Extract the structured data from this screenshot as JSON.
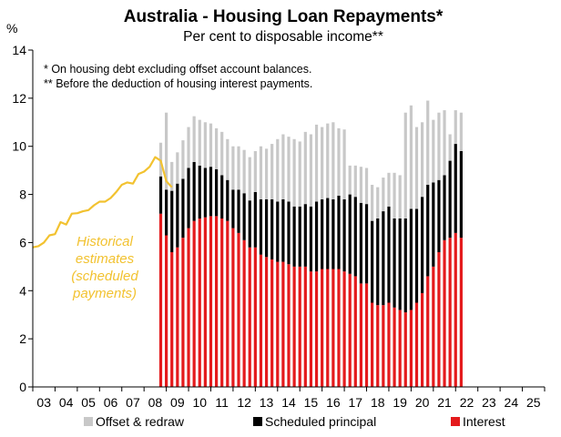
{
  "chart_data": {
    "type": "bar",
    "title": "Australia - Housing Loan Repayments*",
    "subtitle": "Per cent to disposable income**",
    "ylabel": "%",
    "notes": [
      "* On housing debt excluding offset account balances.",
      "** Before the deduction of housing interest payments."
    ],
    "ylim": [
      0,
      14
    ],
    "yticks": [
      0,
      2,
      4,
      6,
      8,
      10,
      12,
      14
    ],
    "xlim": [
      2003,
      2026
    ],
    "xtick_labels": [
      "03",
      "04",
      "05",
      "06",
      "07",
      "08",
      "09",
      "10",
      "11",
      "12",
      "13",
      "14",
      "15",
      "16",
      "17",
      "18",
      "19",
      "20",
      "21",
      "22",
      "23",
      "24",
      "25"
    ],
    "gridlines": false,
    "legend_position": "bottom",
    "annotation": [
      "Historical",
      "estimates",
      "(scheduled",
      "payments)"
    ],
    "colors": {
      "offset": "#C8C8C8",
      "scheduled": "#000000",
      "interest": "#E41A1C",
      "historical": "#F2C230"
    },
    "historical_line": {
      "name": "Historical estimates (scheduled payments)",
      "x": [
        2003.0,
        2003.25,
        2003.5,
        2003.75,
        2004.0,
        2004.25,
        2004.5,
        2004.75,
        2005.0,
        2005.25,
        2005.5,
        2005.75,
        2006.0,
        2006.25,
        2006.5,
        2006.75,
        2007.0,
        2007.25,
        2007.5,
        2007.75,
        2008.0,
        2008.25,
        2008.5,
        2008.75,
        2009.0,
        2009.25
      ],
      "y": [
        5.8,
        5.85,
        6.0,
        6.3,
        6.35,
        6.85,
        6.75,
        7.2,
        7.22,
        7.3,
        7.35,
        7.55,
        7.7,
        7.7,
        7.85,
        8.1,
        8.4,
        8.5,
        8.45,
        8.85,
        8.95,
        9.15,
        9.55,
        9.4,
        8.55,
        8.3
      ]
    },
    "bars": {
      "x_start": 2008.75,
      "step": 0.25,
      "series": [
        {
          "name": "Offset & redraw",
          "key": "offset",
          "values": [
            1.4,
            3.2,
            1.2,
            1.3,
            1.6,
            1.7,
            1.9,
            1.9,
            1.9,
            1.8,
            1.7,
            1.8,
            1.7,
            1.8,
            1.8,
            1.8,
            1.8,
            1.7,
            2.2,
            2.1,
            2.3,
            2.6,
            2.7,
            2.7,
            2.8,
            2.7,
            3.0,
            3.0,
            3.2,
            3.0,
            3.1,
            3.2,
            2.8,
            2.9,
            1.2,
            1.3,
            1.5,
            1.5,
            1.5,
            1.3,
            1.4,
            1.4,
            1.9,
            1.8,
            4.4,
            4.3,
            3.4,
            3.1,
            3.5,
            2.6,
            2.8,
            2.7,
            1.1,
            1.4,
            1.6
          ]
        },
        {
          "name": "Scheduled principal",
          "key": "scheduled",
          "values": [
            1.55,
            1.9,
            2.55,
            2.65,
            2.45,
            2.5,
            2.45,
            2.2,
            2.05,
            2.05,
            1.95,
            1.8,
            1.7,
            1.6,
            1.8,
            1.95,
            1.95,
            2.3,
            2.3,
            2.4,
            2.5,
            2.5,
            2.6,
            2.6,
            2.5,
            2.5,
            2.6,
            2.7,
            2.9,
            2.9,
            2.95,
            2.9,
            3.05,
            3.0,
            3.3,
            3.3,
            3.35,
            3.3,
            3.4,
            3.6,
            3.9,
            4.0,
            3.7,
            3.8,
            3.9,
            4.2,
            3.9,
            4.0,
            3.8,
            3.5,
            3.0,
            2.7,
            3.2,
            3.7,
            3.6
          ]
        },
        {
          "name": "Interest",
          "key": "interest",
          "values": [
            7.2,
            6.3,
            5.6,
            5.8,
            6.2,
            6.6,
            6.9,
            7.0,
            7.05,
            7.1,
            7.1,
            7.0,
            6.9,
            6.6,
            6.4,
            6.1,
            5.8,
            5.8,
            5.5,
            5.4,
            5.3,
            5.2,
            5.2,
            5.1,
            5.0,
            5.0,
            5.0,
            4.8,
            4.8,
            4.9,
            4.9,
            4.9,
            4.9,
            4.8,
            4.7,
            4.6,
            4.3,
            4.3,
            3.5,
            3.4,
            3.4,
            3.5,
            3.3,
            3.2,
            3.1,
            3.2,
            3.5,
            3.9,
            4.6,
            5.0,
            5.6,
            6.1,
            6.2,
            6.4,
            6.2
          ]
        }
      ]
    },
    "legend": [
      "Offset & redraw",
      "Scheduled principal",
      "Interest"
    ]
  }
}
